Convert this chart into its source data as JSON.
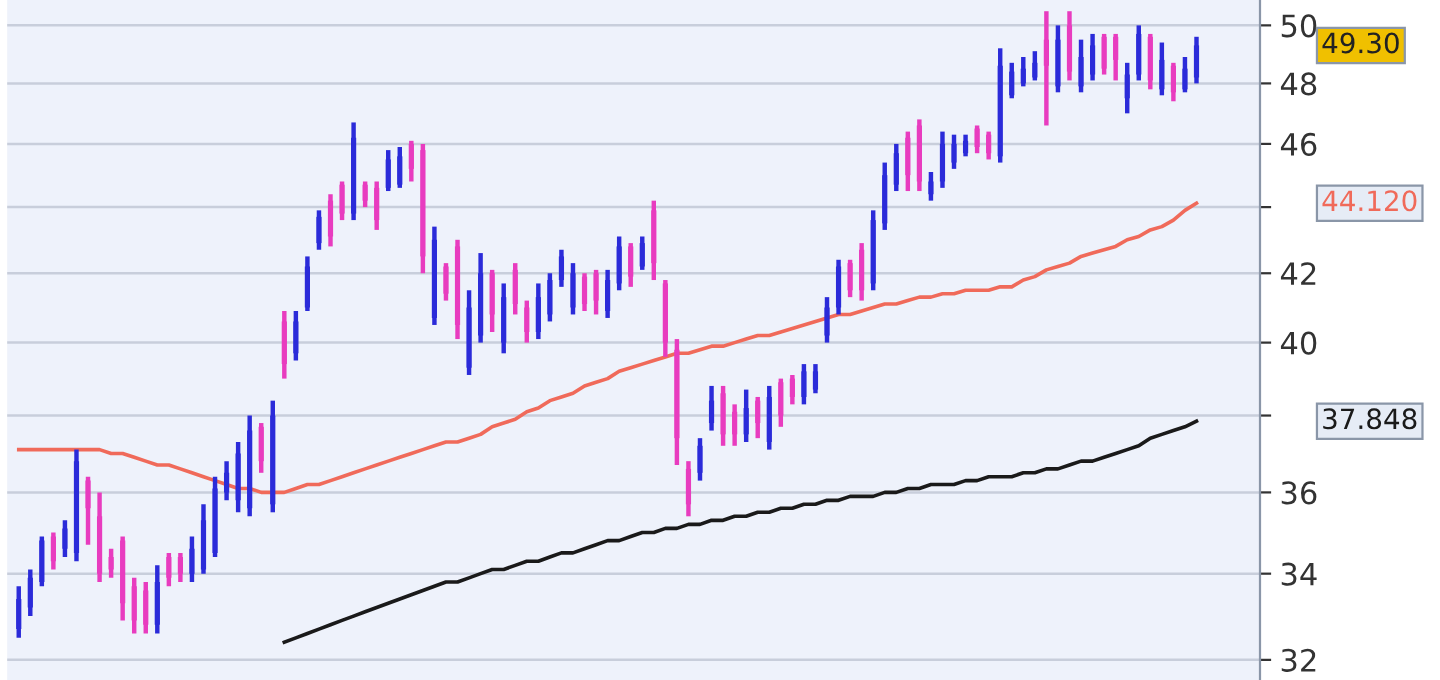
{
  "chart_data": {
    "type": "candlestick",
    "categories": [
      null,
      null,
      null,
      null,
      null,
      null,
      null,
      null,
      null,
      null,
      null,
      null,
      null,
      null,
      null,
      null,
      null,
      null,
      null,
      null,
      null,
      null,
      null,
      null,
      null,
      null,
      null,
      null,
      null,
      null,
      null,
      null,
      null,
      null,
      null,
      null,
      null,
      null,
      null,
      null,
      null,
      null,
      null,
      null,
      null,
      null,
      null,
      null,
      null,
      null,
      null,
      null,
      null,
      null,
      null,
      null,
      null,
      null,
      null,
      null,
      null,
      null,
      null,
      null,
      null,
      null,
      null,
      null,
      null,
      null,
      null,
      null,
      null,
      null,
      null,
      null,
      null,
      null,
      null,
      null,
      null,
      null,
      null,
      null,
      null,
      null,
      null,
      null,
      null,
      null,
      null,
      null,
      null,
      null,
      null,
      null,
      null,
      null,
      null,
      null,
      null,
      null,
      null
    ],
    "ohlc": [
      [
        32.7,
        33.7,
        32.5,
        33.4
      ],
      [
        33.2,
        34.1,
        33.0,
        33.9
      ],
      [
        33.8,
        34.9,
        33.7,
        34.8
      ],
      [
        34.9,
        35.0,
        34.1,
        34.3
      ],
      [
        34.6,
        35.3,
        34.4,
        35.1
      ],
      [
        34.5,
        37.1,
        34.3,
        36.8
      ],
      [
        36.3,
        36.4,
        34.7,
        35.6
      ],
      [
        35.4,
        36.0,
        33.8,
        34.0
      ],
      [
        34.4,
        34.6,
        33.9,
        34.1
      ],
      [
        34.8,
        34.9,
        32.9,
        33.3
      ],
      [
        33.7,
        33.9,
        32.6,
        32.9
      ],
      [
        33.6,
        33.8,
        32.6,
        32.8
      ],
      [
        32.8,
        34.2,
        32.6,
        33.8
      ],
      [
        34.4,
        34.5,
        33.7,
        33.9
      ],
      [
        34.4,
        34.5,
        33.8,
        34.0
      ],
      [
        34.0,
        34.9,
        33.8,
        34.6
      ],
      [
        34.1,
        35.7,
        34.0,
        35.3
      ],
      [
        34.5,
        36.4,
        34.4,
        36.1
      ],
      [
        36.0,
        36.8,
        35.8,
        36.5
      ],
      [
        35.8,
        37.3,
        35.5,
        37.0
      ],
      [
        35.6,
        38.0,
        35.4,
        37.6
      ],
      [
        37.7,
        37.8,
        36.5,
        36.8
      ],
      [
        35.7,
        38.4,
        35.5,
        38.0
      ],
      [
        40.6,
        40.9,
        39.0,
        39.4
      ],
      [
        39.7,
        40.9,
        39.5,
        40.6
      ],
      [
        41.0,
        42.5,
        40.9,
        42.2
      ],
      [
        42.9,
        43.9,
        42.7,
        43.7
      ],
      [
        44.2,
        44.4,
        42.8,
        43.1
      ],
      [
        44.7,
        44.8,
        43.6,
        43.8
      ],
      [
        43.8,
        46.7,
        43.6,
        46.2
      ],
      [
        44.7,
        44.8,
        44.0,
        44.2
      ],
      [
        44.6,
        44.8,
        43.3,
        43.6
      ],
      [
        44.6,
        45.8,
        44.5,
        45.5
      ],
      [
        44.7,
        45.9,
        44.6,
        45.6
      ],
      [
        46.0,
        46.1,
        44.8,
        45.2
      ],
      [
        45.8,
        46.0,
        42.0,
        42.5
      ],
      [
        40.7,
        43.4,
        40.5,
        43.0
      ],
      [
        42.2,
        42.3,
        41.2,
        41.4
      ],
      [
        42.8,
        43.0,
        40.1,
        40.5
      ],
      [
        39.3,
        41.5,
        39.1,
        41.0
      ],
      [
        40.2,
        42.6,
        40.0,
        42.0
      ],
      [
        42.0,
        42.1,
        40.3,
        40.8
      ],
      [
        40.0,
        41.7,
        39.7,
        41.3
      ],
      [
        42.1,
        42.3,
        40.8,
        41.1
      ],
      [
        41.0,
        41.2,
        40.0,
        40.3
      ],
      [
        40.3,
        41.7,
        40.1,
        41.3
      ],
      [
        40.8,
        42.0,
        40.6,
        41.8
      ],
      [
        41.8,
        42.7,
        41.6,
        42.5
      ],
      [
        41.0,
        42.3,
        40.8,
        42.0
      ],
      [
        41.9,
        42.0,
        40.9,
        41.1
      ],
      [
        42.0,
        42.1,
        40.8,
        41.2
      ],
      [
        40.9,
        42.1,
        40.7,
        41.8
      ],
      [
        41.7,
        43.1,
        41.5,
        42.8
      ],
      [
        42.8,
        42.9,
        41.6,
        41.9
      ],
      [
        42.2,
        43.1,
        42.1,
        42.9
      ],
      [
        43.9,
        44.2,
        41.8,
        42.3
      ],
      [
        41.7,
        41.8,
        39.6,
        40.0
      ],
      [
        39.8,
        40.1,
        36.7,
        37.4
      ],
      [
        36.6,
        36.8,
        35.4,
        35.7
      ],
      [
        36.5,
        37.4,
        36.3,
        37.2
      ],
      [
        37.8,
        38.8,
        37.6,
        38.4
      ],
      [
        38.6,
        38.8,
        37.2,
        37.5
      ],
      [
        38.1,
        38.3,
        37.2,
        37.5
      ],
      [
        37.5,
        38.7,
        37.3,
        38.2
      ],
      [
        38.4,
        38.5,
        37.4,
        37.8
      ],
      [
        37.3,
        38.8,
        37.1,
        38.5
      ],
      [
        38.9,
        39.0,
        37.7,
        38.0
      ],
      [
        39.0,
        39.1,
        38.3,
        38.5
      ],
      [
        38.5,
        39.4,
        38.3,
        39.2
      ],
      [
        38.7,
        39.4,
        38.6,
        39.2
      ],
      [
        40.2,
        41.3,
        40.0,
        41.0
      ],
      [
        41.0,
        42.4,
        40.8,
        42.2
      ],
      [
        42.3,
        42.4,
        41.3,
        41.5
      ],
      [
        42.7,
        42.9,
        41.2,
        41.5
      ],
      [
        41.7,
        43.9,
        41.5,
        43.6
      ],
      [
        43.5,
        45.4,
        43.3,
        45.0
      ],
      [
        44.7,
        46.0,
        44.5,
        45.7
      ],
      [
        46.2,
        46.4,
        44.5,
        45.0
      ],
      [
        46.6,
        46.8,
        44.5,
        44.8
      ],
      [
        44.4,
        45.1,
        44.2,
        44.8
      ],
      [
        44.8,
        46.4,
        44.6,
        46.0
      ],
      [
        45.4,
        46.3,
        45.2,
        46.0
      ],
      [
        45.7,
        46.3,
        45.6,
        46.1
      ],
      [
        46.5,
        46.6,
        45.7,
        45.9
      ],
      [
        46.3,
        46.4,
        45.5,
        45.7
      ],
      [
        45.6,
        49.2,
        45.4,
        48.6
      ],
      [
        47.6,
        48.7,
        47.5,
        48.4
      ],
      [
        48.0,
        48.9,
        47.9,
        48.5
      ],
      [
        48.2,
        49.1,
        48.1,
        48.7
      ],
      [
        49.5,
        50.5,
        46.6,
        48.6
      ],
      [
        47.9,
        50.0,
        47.7,
        49.5
      ],
      [
        50.0,
        50.5,
        48.1,
        48.4
      ],
      [
        47.9,
        49.5,
        47.7,
        48.9
      ],
      [
        48.3,
        49.7,
        48.1,
        49.3
      ],
      [
        49.6,
        49.7,
        48.3,
        48.5
      ],
      [
        49.6,
        49.7,
        48.1,
        48.8
      ],
      [
        47.5,
        48.7,
        47.0,
        48.3
      ],
      [
        48.3,
        50.0,
        48.1,
        49.7
      ],
      [
        49.6,
        49.7,
        47.8,
        48.1
      ],
      [
        47.8,
        49.4,
        47.6,
        48.8
      ],
      [
        48.6,
        48.7,
        47.4,
        47.7
      ],
      [
        47.8,
        48.9,
        47.7,
        48.5
      ],
      [
        48.2,
        49.6,
        48.0,
        49.3
      ]
    ],
    "colors": [
      "#2b2bd9",
      "#2b2bd9",
      "#2b2bd9",
      "#e83cbf",
      "#2b2bd9",
      "#2b2bd9",
      "#e83cbf",
      "#e83cbf",
      "#e83cbf",
      "#e83cbf",
      "#e83cbf",
      "#e83cbf",
      "#2b2bd9",
      "#e83cbf",
      "#e83cbf",
      "#2b2bd9",
      "#2b2bd9",
      "#2b2bd9",
      "#2b2bd9",
      "#2b2bd9",
      "#2b2bd9",
      "#e83cbf",
      "#2b2bd9",
      "#e83cbf",
      "#2b2bd9",
      "#2b2bd9",
      "#2b2bd9",
      "#e83cbf",
      "#e83cbf",
      "#2b2bd9",
      "#e83cbf",
      "#e83cbf",
      "#2b2bd9",
      "#2b2bd9",
      "#e83cbf",
      "#e83cbf",
      "#2b2bd9",
      "#e83cbf",
      "#e83cbf",
      "#2b2bd9",
      "#2b2bd9",
      "#e83cbf",
      "#2b2bd9",
      "#e83cbf",
      "#e83cbf",
      "#2b2bd9",
      "#2b2bd9",
      "#2b2bd9",
      "#2b2bd9",
      "#e83cbf",
      "#e83cbf",
      "#2b2bd9",
      "#2b2bd9",
      "#e83cbf",
      "#2b2bd9",
      "#e83cbf",
      "#e83cbf",
      "#e83cbf",
      "#e83cbf",
      "#2b2bd9",
      "#2b2bd9",
      "#e83cbf",
      "#e83cbf",
      "#2b2bd9",
      "#e83cbf",
      "#2b2bd9",
      "#e83cbf",
      "#e83cbf",
      "#2b2bd9",
      "#2b2bd9",
      "#2b2bd9",
      "#2b2bd9",
      "#e83cbf",
      "#e83cbf",
      "#2b2bd9",
      "#2b2bd9",
      "#2b2bd9",
      "#e83cbf",
      "#e83cbf",
      "#2b2bd9",
      "#2b2bd9",
      "#2b2bd9",
      "#2b2bd9",
      "#e83cbf",
      "#e83cbf",
      "#2b2bd9",
      "#2b2bd9",
      "#2b2bd9",
      "#2b2bd9",
      "#e83cbf",
      "#2b2bd9",
      "#e83cbf",
      "#2b2bd9",
      "#2b2bd9",
      "#e83cbf",
      "#e83cbf",
      "#2b2bd9",
      "#2b2bd9",
      "#e83cbf",
      "#2b2bd9",
      "#e83cbf",
      "#2b2bd9",
      "#2b2bd9"
    ],
    "series": [
      {
        "type": "line",
        "color": "#f06a5a",
        "values": [
          37.1,
          37.1,
          37.1,
          37.1,
          37.1,
          37.1,
          37.1,
          37.1,
          37.0,
          37.0,
          36.9,
          36.8,
          36.7,
          36.7,
          36.6,
          36.5,
          36.4,
          36.3,
          36.2,
          36.1,
          36.1,
          36.0,
          36.0,
          36.0,
          36.1,
          36.2,
          36.2,
          36.3,
          36.4,
          36.5,
          36.6,
          36.7,
          36.8,
          36.9,
          37.0,
          37.1,
          37.2,
          37.3,
          37.3,
          37.4,
          37.5,
          37.7,
          37.8,
          37.9,
          38.1,
          38.2,
          38.4,
          38.5,
          38.6,
          38.8,
          38.9,
          39.0,
          39.2,
          39.3,
          39.4,
          39.5,
          39.6,
          39.7,
          39.7,
          39.8,
          39.9,
          39.9,
          40.0,
          40.1,
          40.2,
          40.2,
          40.3,
          40.4,
          40.5,
          40.6,
          40.7,
          40.8,
          40.8,
          40.9,
          41.0,
          41.1,
          41.1,
          41.2,
          41.3,
          41.3,
          41.4,
          41.4,
          41.5,
          41.5,
          41.5,
          41.6,
          41.6,
          41.8,
          41.9,
          42.1,
          42.2,
          42.3,
          42.5,
          42.6,
          42.7,
          42.8,
          43.0,
          43.1,
          43.3,
          43.4,
          43.6,
          43.9,
          44.12
        ]
      },
      {
        "type": "line",
        "color": "#1a1a1a",
        "values": [
          null,
          null,
          null,
          null,
          null,
          null,
          null,
          null,
          null,
          null,
          null,
          null,
          null,
          null,
          null,
          null,
          null,
          null,
          null,
          null,
          null,
          null,
          null,
          32.4,
          32.5,
          32.6,
          32.7,
          32.8,
          32.9,
          33.0,
          33.1,
          33.2,
          33.3,
          33.4,
          33.5,
          33.6,
          33.7,
          33.8,
          33.8,
          33.9,
          34.0,
          34.1,
          34.1,
          34.2,
          34.3,
          34.3,
          34.4,
          34.5,
          34.5,
          34.6,
          34.7,
          34.8,
          34.8,
          34.9,
          35.0,
          35.0,
          35.1,
          35.1,
          35.2,
          35.2,
          35.3,
          35.3,
          35.4,
          35.4,
          35.5,
          35.5,
          35.6,
          35.6,
          35.7,
          35.7,
          35.8,
          35.8,
          35.9,
          35.9,
          35.9,
          36.0,
          36.0,
          36.1,
          36.1,
          36.2,
          36.2,
          36.2,
          36.3,
          36.3,
          36.4,
          36.4,
          36.4,
          36.5,
          36.5,
          36.6,
          36.6,
          36.7,
          36.8,
          36.8,
          36.9,
          37.0,
          37.1,
          37.2,
          37.4,
          37.5,
          37.6,
          37.7,
          37.848
        ]
      }
    ],
    "log": true,
    "ylim": [
      31.55,
      50.9
    ],
    "yticks": [
      32,
      34,
      36,
      {
        "value": 38,
        "label": null
      },
      40,
      42,
      {
        "value": 44,
        "label": null
      },
      46,
      48,
      50
    ],
    "grid": "y",
    "annotations": [
      "49.30",
      "44.120",
      "37.848"
    ]
  }
}
